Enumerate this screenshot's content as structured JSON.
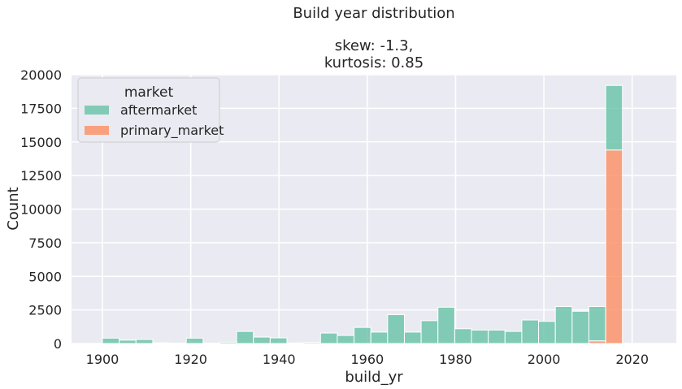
{
  "chart_data": {
    "type": "bar",
    "stacked": true,
    "title_lines": [
      "Build year distribution",
      "",
      "skew: -1.3,",
      "kurtosis: 0.85"
    ],
    "xlabel": "build_yr",
    "ylabel": "Count",
    "xlim": [
      1893,
      2030
    ],
    "ylim": [
      0,
      20000
    ],
    "x_ticks": [
      1900,
      1920,
      1940,
      1960,
      1980,
      2000,
      2020
    ],
    "y_ticks": [
      0,
      2500,
      5000,
      7500,
      10000,
      12500,
      15000,
      17500,
      20000
    ],
    "grid": true,
    "legend": {
      "title": "market",
      "placement": "top-left",
      "entries": [
        {
          "label": "aftermarket",
          "color": "#66c2a5"
        },
        {
          "label": "primary_market",
          "color": "#fc8d62"
        }
      ]
    },
    "bin_width": 3.8,
    "bins": [
      {
        "start": 1900.0,
        "aftermarket": 400,
        "primary_market": 0
      },
      {
        "start": 1903.8,
        "aftermarket": 250,
        "primary_market": 0
      },
      {
        "start": 1907.6,
        "aftermarket": 300,
        "primary_market": 0
      },
      {
        "start": 1911.4,
        "aftermarket": 50,
        "primary_market": 0
      },
      {
        "start": 1915.2,
        "aftermarket": 20,
        "primary_market": 0
      },
      {
        "start": 1919.0,
        "aftermarket": 400,
        "primary_market": 0
      },
      {
        "start": 1922.8,
        "aftermarket": 30,
        "primary_market": 0
      },
      {
        "start": 1926.6,
        "aftermarket": 100,
        "primary_market": 0
      },
      {
        "start": 1930.4,
        "aftermarket": 900,
        "primary_market": 0
      },
      {
        "start": 1934.2,
        "aftermarket": 480,
        "primary_market": 0
      },
      {
        "start": 1938.0,
        "aftermarket": 420,
        "primary_market": 0
      },
      {
        "start": 1941.8,
        "aftermarket": 40,
        "primary_market": 0
      },
      {
        "start": 1945.6,
        "aftermarket": 80,
        "primary_market": 0
      },
      {
        "start": 1949.4,
        "aftermarket": 780,
        "primary_market": 0
      },
      {
        "start": 1953.2,
        "aftermarket": 600,
        "primary_market": 0
      },
      {
        "start": 1957.0,
        "aftermarket": 1200,
        "primary_market": 0
      },
      {
        "start": 1960.8,
        "aftermarket": 850,
        "primary_market": 0
      },
      {
        "start": 1964.6,
        "aftermarket": 2150,
        "primary_market": 0
      },
      {
        "start": 1968.4,
        "aftermarket": 850,
        "primary_market": 0
      },
      {
        "start": 1972.2,
        "aftermarket": 1700,
        "primary_market": 0
      },
      {
        "start": 1976.0,
        "aftermarket": 2700,
        "primary_market": 0
      },
      {
        "start": 1979.8,
        "aftermarket": 1100,
        "primary_market": 0
      },
      {
        "start": 1983.6,
        "aftermarket": 1000,
        "primary_market": 0
      },
      {
        "start": 1987.4,
        "aftermarket": 1000,
        "primary_market": 0
      },
      {
        "start": 1991.2,
        "aftermarket": 900,
        "primary_market": 0
      },
      {
        "start": 1995.0,
        "aftermarket": 1750,
        "primary_market": 0
      },
      {
        "start": 1998.8,
        "aftermarket": 1650,
        "primary_market": 0
      },
      {
        "start": 2002.6,
        "aftermarket": 2750,
        "primary_market": 0
      },
      {
        "start": 2006.4,
        "aftermarket": 2400,
        "primary_market": 0
      },
      {
        "start": 2010.2,
        "aftermarket": 2550,
        "primary_market": 200
      },
      {
        "start": 2014.0,
        "aftermarket": 4800,
        "primary_market": 14400
      }
    ]
  }
}
